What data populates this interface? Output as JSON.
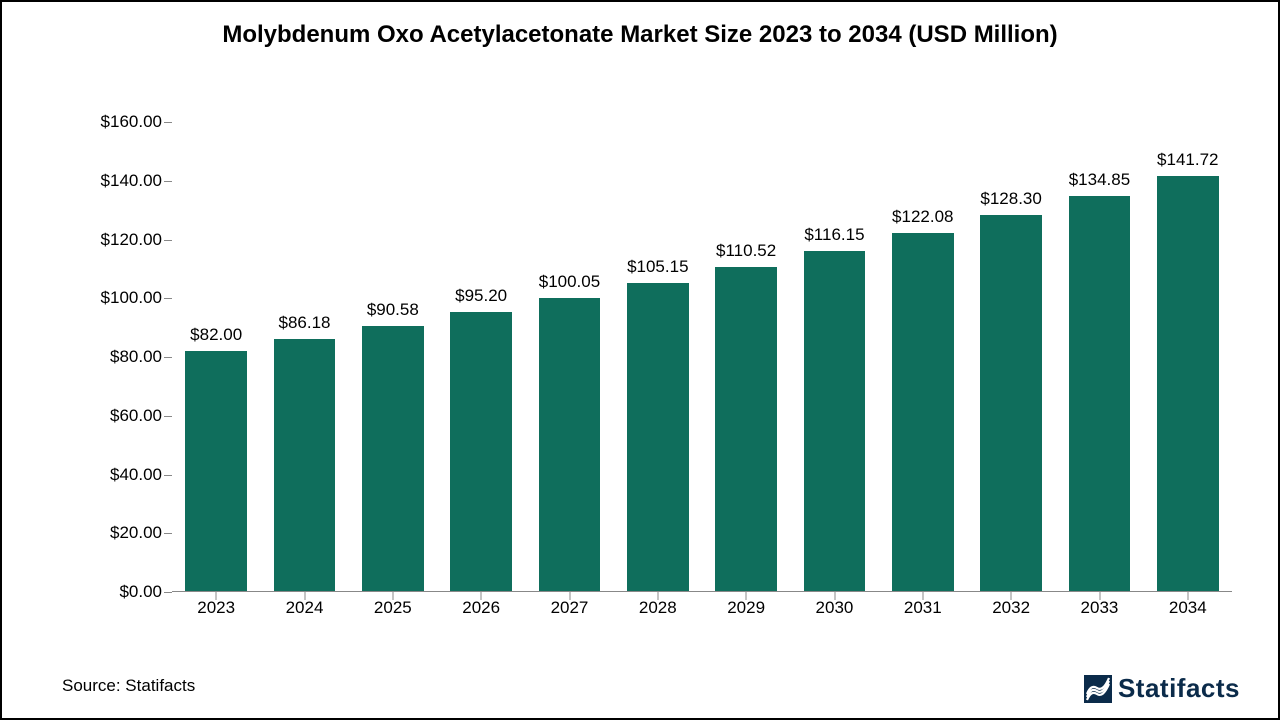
{
  "chart": {
    "type": "bar",
    "title": "Molybdenum Oxo Acetylacetonate Market Size 2023 to 2034 (USD Million)",
    "title_fontsize": 24,
    "categories": [
      "2023",
      "2024",
      "2025",
      "2026",
      "2027",
      "2028",
      "2029",
      "2030",
      "2031",
      "2032",
      "2033",
      "2034"
    ],
    "values": [
      82.0,
      86.18,
      90.58,
      95.2,
      100.05,
      105.15,
      110.52,
      116.15,
      122.08,
      128.3,
      134.85,
      141.72
    ],
    "value_labels": [
      "$82.00",
      "$86.18",
      "$90.58",
      "$95.20",
      "$100.05",
      "$105.15",
      "$110.52",
      "$116.15",
      "$122.08",
      "$128.30",
      "$134.85",
      "$141.72"
    ],
    "bar_color": "#0f6e5c",
    "background_color": "#ffffff",
    "border_color": "#000000",
    "ylim": [
      0,
      160
    ],
    "ytick_step": 20,
    "ytick_labels": [
      "$0.00",
      "$20.00",
      "$40.00",
      "$60.00",
      "$80.00",
      "$100.00",
      "$120.00",
      "$140.00",
      "$160.00"
    ],
    "axis_color": "#888888",
    "text_color": "#000000",
    "label_fontsize": 17,
    "value_fontsize": 17,
    "category_fontsize": 17,
    "bar_width": 0.7,
    "grid": false
  },
  "footer": {
    "source": "Source: Statifacts",
    "source_fontsize": 17,
    "brand": "Statifacts",
    "brand_fontsize": 26,
    "brand_color": "#0b2b4a"
  }
}
